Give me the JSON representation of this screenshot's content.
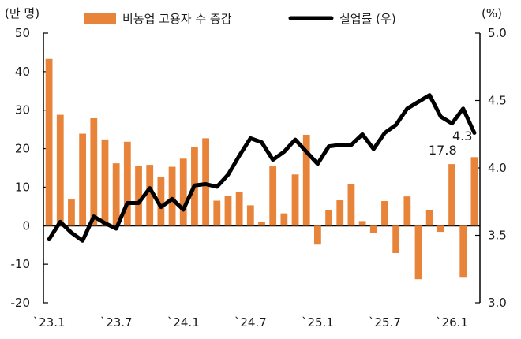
{
  "chart_data": {
    "type": "bar+line",
    "left_unit": "(만 명)",
    "right_unit": "(%)",
    "legend": {
      "bar": "비농업 고용자 수 증감",
      "line": "실업률 (우)"
    },
    "colors": {
      "bar": "#e8843a",
      "line": "#000000"
    },
    "left_axis": {
      "min": -20,
      "max": 50,
      "ticks": [
        "50",
        "40",
        "30",
        "20",
        "10",
        "0",
        "-10",
        "-20"
      ]
    },
    "right_axis": {
      "min": 3.0,
      "max": 5.0,
      "ticks": [
        "5.0",
        "4.5",
        "4.0",
        "3.5",
        "3.0"
      ]
    },
    "x_ticks": [
      {
        "index": 0,
        "label": "`23.1"
      },
      {
        "index": 6,
        "label": "`23.7"
      },
      {
        "index": 12,
        "label": "`24.1"
      },
      {
        "index": 18,
        "label": "`24.7"
      },
      {
        "index": 24,
        "label": "`25.1"
      },
      {
        "index": 30,
        "label": "`25.7"
      },
      {
        "index": 36,
        "label": "`26.1"
      }
    ],
    "bars": [
      43.3,
      28.8,
      6.8,
      23.9,
      27.9,
      22.4,
      16.2,
      21.8,
      15.5,
      15.8,
      12.7,
      15.3,
      17.4,
      20.4,
      22.7,
      6.5,
      7.8,
      8.7,
      5.3,
      0.9,
      15.4,
      3.2,
      13.3,
      23.6,
      -4.9,
      4.1,
      6.6,
      10.7,
      1.2,
      -1.9,
      6.4,
      -7.1,
      7.6,
      -13.9,
      4.0,
      -1.6,
      16.0,
      -13.3,
      17.8
    ],
    "unemployment": [
      3.47,
      3.6,
      3.52,
      3.46,
      3.64,
      3.59,
      3.55,
      3.74,
      3.74,
      3.85,
      3.71,
      3.77,
      3.69,
      3.87,
      3.88,
      3.86,
      3.95,
      4.09,
      4.22,
      4.19,
      4.06,
      4.12,
      4.21,
      4.12,
      4.03,
      4.16,
      4.17,
      4.17,
      4.25,
      4.14,
      4.26,
      4.32,
      4.44,
      4.49,
      4.54,
      4.38,
      4.33,
      4.44,
      4.26
    ],
    "annotations": {
      "line_last": "4.3",
      "bar_last": "17.8"
    }
  }
}
